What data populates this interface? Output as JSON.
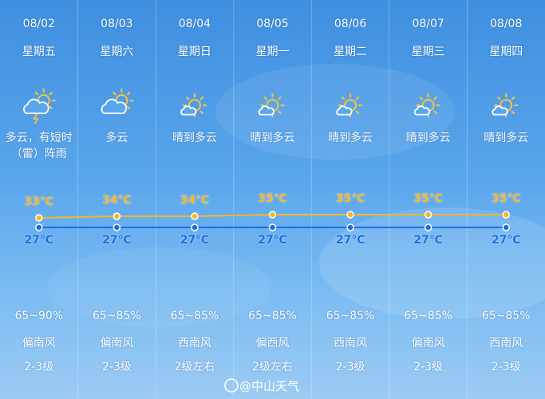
{
  "chart_data": {
    "type": "line",
    "categories": [
      "08/02",
      "08/03",
      "08/04",
      "08/05",
      "08/06",
      "08/07",
      "08/08"
    ],
    "series": [
      {
        "color": "#f6b52a",
        "values": [
          33,
          34,
          34,
          35,
          35,
          35,
          35
        ],
        "value_labels": [
          "33℃",
          "34℃",
          "34℃",
          "35℃",
          "35℃",
          "35℃",
          "35℃"
        ]
      },
      {
        "color": "#1c6de6",
        "values": [
          27,
          27,
          27,
          27,
          27,
          27,
          27
        ],
        "value_labels": [
          "27℃",
          "27℃",
          "27℃",
          "27℃",
          "27℃",
          "27℃",
          "27℃"
        ]
      }
    ],
    "ylim": [
      20,
      40
    ]
  },
  "days": [
    {
      "weekday": "星期五",
      "weather": "多云，有短时（雷）阵雨",
      "humidity": "65~90%",
      "wind": "偏南风",
      "wind_level": "2-3级"
    },
    {
      "weekday": "星期六",
      "weather": "多云",
      "humidity": "65~85%",
      "wind": "偏南风",
      "wind_level": "2-3级"
    },
    {
      "weekday": "星期日",
      "weather": "晴到多云",
      "humidity": "65~85%",
      "wind": "西南风",
      "wind_level": "2级左右"
    },
    {
      "weekday": "星期一",
      "weather": "晴到多云",
      "humidity": "65~85%",
      "wind": "偏西风",
      "wind_level": "2级左右"
    },
    {
      "weekday": "星期二",
      "weather": "晴到多云",
      "humidity": "65~85%",
      "wind": "西南风",
      "wind_level": "2-3级"
    },
    {
      "weekday": "星期三",
      "weather": "晴到多云",
      "humidity": "65~85%",
      "wind": "偏南风",
      "wind_level": "2-3级"
    },
    {
      "weekday": "星期四",
      "weather": "晴到多云",
      "humidity": "65~85%",
      "wind": "西南风",
      "wind_level": "2-3级"
    }
  ],
  "watermark": "@中山天气"
}
